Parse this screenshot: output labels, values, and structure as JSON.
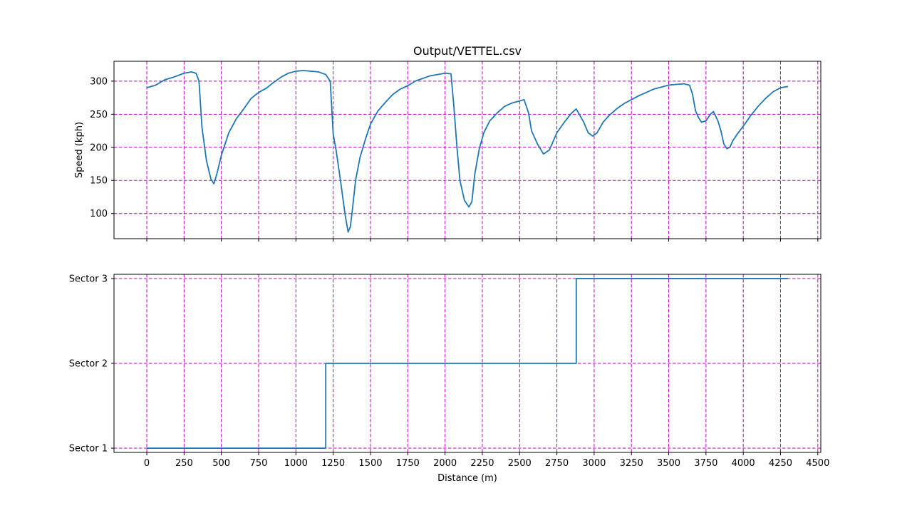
{
  "chart_data": [
    {
      "type": "line",
      "title": "Output/VETTEL.csv",
      "xlabel": "",
      "ylabel": "Speed (kph)",
      "xlim": [
        -220,
        4520
      ],
      "ylim": [
        62,
        330
      ],
      "xticks": [
        0,
        250,
        500,
        750,
        1000,
        1250,
        1500,
        1750,
        2000,
        2250,
        2500,
        2750,
        3000,
        3250,
        3500,
        3750,
        4000,
        4250,
        4500
      ],
      "yticks": [
        100,
        150,
        200,
        250,
        300
      ],
      "grid": true,
      "x_tick_labels_visible": false,
      "series": [
        {
          "color": "#1f77b4",
          "x": [
            0,
            60,
            120,
            180,
            250,
            300,
            330,
            350,
            370,
            400,
            430,
            450,
            470,
            500,
            550,
            600,
            650,
            700,
            750,
            800,
            850,
            900,
            950,
            1000,
            1050,
            1100,
            1150,
            1200,
            1230,
            1250,
            1270,
            1300,
            1330,
            1350,
            1365,
            1380,
            1400,
            1430,
            1470,
            1500,
            1550,
            1600,
            1650,
            1700,
            1750,
            1800,
            1850,
            1900,
            1950,
            2000,
            2040,
            2060,
            2080,
            2100,
            2130,
            2160,
            2180,
            2200,
            2230,
            2260,
            2300,
            2350,
            2400,
            2450,
            2500,
            2530,
            2560,
            2580,
            2620,
            2660,
            2700,
            2750,
            2800,
            2850,
            2880,
            2900,
            2930,
            2960,
            2990,
            3020,
            3060,
            3100,
            3150,
            3200,
            3250,
            3300,
            3350,
            3400,
            3450,
            3500,
            3550,
            3600,
            3640,
            3660,
            3680,
            3700,
            3720,
            3750,
            3780,
            3800,
            3830,
            3850,
            3870,
            3890,
            3910,
            3930,
            3960,
            4000,
            4050,
            4100,
            4150,
            4200,
            4250,
            4300
          ],
          "values": [
            290,
            294,
            302,
            306,
            312,
            314,
            312,
            300,
            230,
            180,
            152,
            145,
            160,
            188,
            222,
            243,
            258,
            274,
            283,
            289,
            298,
            306,
            312,
            315,
            316,
            315,
            314,
            310,
            300,
            220,
            195,
            148,
            98,
            72,
            80,
            108,
            150,
            185,
            215,
            235,
            255,
            268,
            280,
            288,
            293,
            300,
            304,
            308,
            310,
            312,
            311,
            260,
            200,
            150,
            120,
            110,
            118,
            160,
            198,
            222,
            240,
            252,
            262,
            267,
            270,
            272,
            252,
            225,
            205,
            190,
            196,
            222,
            238,
            252,
            258,
            250,
            238,
            222,
            217,
            222,
            238,
            248,
            258,
            266,
            272,
            278,
            283,
            288,
            291,
            294,
            295,
            296,
            294,
            280,
            255,
            245,
            238,
            240,
            250,
            254,
            240,
            225,
            205,
            198,
            200,
            210,
            220,
            232,
            248,
            262,
            274,
            284,
            290,
            292
          ]
        }
      ]
    },
    {
      "type": "line",
      "title": "",
      "xlabel": "Distance (m)",
      "ylabel": "",
      "xlim": [
        -220,
        4520
      ],
      "ylim": [
        0.95,
        3.05
      ],
      "xticks": [
        0,
        250,
        500,
        750,
        1000,
        1250,
        1500,
        1750,
        2000,
        2250,
        2500,
        2750,
        3000,
        3250,
        3500,
        3750,
        4000,
        4250,
        4500
      ],
      "yticks": [
        1,
        2,
        3
      ],
      "ytick_labels": [
        "Sector 1",
        "Sector 2",
        "Sector 3"
      ],
      "grid": true,
      "series": [
        {
          "color": "#1f77b4",
          "step": true,
          "x": [
            0,
            1200,
            1200,
            2880,
            2880,
            4300
          ],
          "values": [
            1,
            1,
            2,
            2,
            3,
            3
          ]
        }
      ]
    }
  ]
}
